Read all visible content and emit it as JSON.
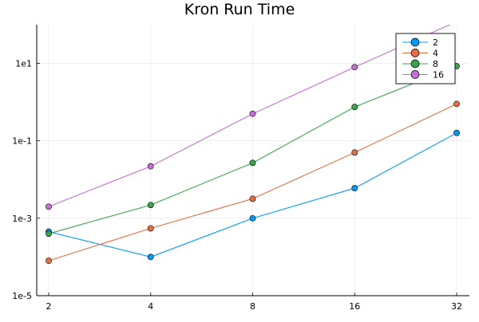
{
  "chart_data": {
    "type": "line",
    "title": "Kron Run Time",
    "xlabel": "",
    "ylabel": "",
    "x_scale": "log2",
    "y_scale": "log10",
    "x": [
      2,
      4,
      8,
      16,
      32
    ],
    "x_tick_labels": [
      "2",
      "4",
      "8",
      "16",
      "32"
    ],
    "y_ticks": [
      1e-05,
      0.001,
      0.1,
      10
    ],
    "y_tick_labels": [
      "1e-5",
      "1e-3",
      "1e-1",
      "1e1"
    ],
    "ylim": [
      1e-05,
      100
    ],
    "grid": true,
    "legend_position": "top-right",
    "series": [
      {
        "name": "2",
        "color": "#009af9",
        "values": [
          0.00045,
          0.0001,
          0.001,
          0.006,
          0.16
        ]
      },
      {
        "name": "4",
        "color": "#e26f46",
        "values": [
          8e-05,
          0.00055,
          0.0032,
          0.05,
          0.9
        ]
      },
      {
        "name": "8",
        "color": "#3da44d",
        "values": [
          0.0004,
          0.0022,
          0.027,
          0.75,
          8.5
        ]
      },
      {
        "name": "16",
        "color": "#c271d2",
        "values": [
          0.002,
          0.022,
          0.5,
          8.0,
          120
        ]
      }
    ]
  }
}
